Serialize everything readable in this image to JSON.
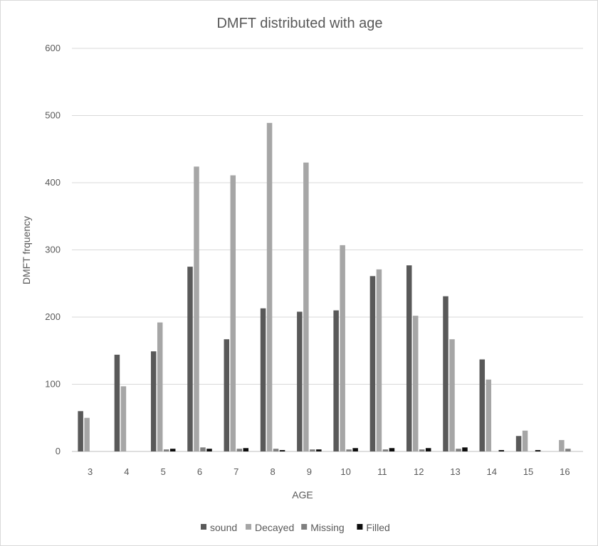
{
  "chart_data": {
    "type": "bar",
    "title": "DMFT distributed with age",
    "xlabel": "AGE",
    "ylabel": "DMFT frquency",
    "ylim": [
      0,
      600
    ],
    "yticks": [
      0,
      100,
      200,
      300,
      400,
      500,
      600
    ],
    "grid": true,
    "legend_position": "bottom",
    "categories": [
      "3",
      "4",
      "5",
      "6",
      "7",
      "8",
      "9",
      "10",
      "11",
      "12",
      "13",
      "14",
      "15",
      "16"
    ],
    "series": [
      {
        "name": "sound",
        "color": "#595959",
        "values": [
          60,
          144,
          149,
          275,
          167,
          213,
          208,
          210,
          261,
          277,
          231,
          137,
          23,
          0
        ]
      },
      {
        "name": "Decayed",
        "color": "#a6a6a6",
        "values": [
          50,
          97,
          192,
          424,
          411,
          489,
          430,
          307,
          271,
          202,
          167,
          107,
          31,
          17
        ]
      },
      {
        "name": "Missing",
        "color": "#7f7f7f",
        "values": [
          0,
          0,
          3,
          6,
          4,
          4,
          3,
          3,
          3,
          3,
          4,
          0,
          0,
          4
        ]
      },
      {
        "name": "Filled",
        "color": "#0d0d0d",
        "values": [
          0,
          0,
          4,
          4,
          5,
          2,
          3,
          5,
          5,
          5,
          6,
          2,
          2,
          0
        ]
      }
    ]
  }
}
